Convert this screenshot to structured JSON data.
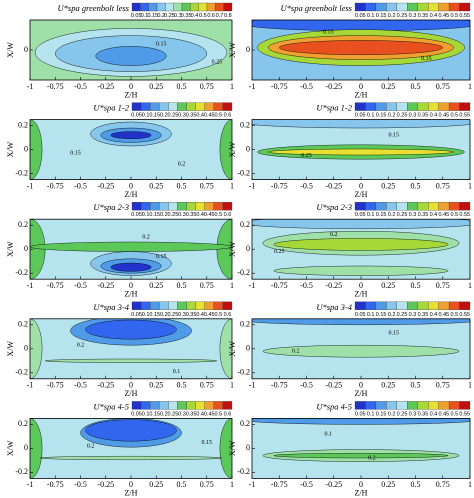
{
  "chart_data": [
    {
      "type": "contour",
      "title": "U*spa greenbolt less",
      "xlabel": "Z/H",
      "ylabel": "X/W",
      "xlim": [
        -1,
        1
      ],
      "ylim": [
        -0.25,
        0.25
      ],
      "xticks": [
        -1,
        -0.75,
        -0.5,
        -0.25,
        0,
        0.25,
        0.5,
        0.75,
        1
      ],
      "yticks": [
        0
      ],
      "colorbar_ticks": [
        0.05,
        0.1,
        0.15,
        0.2,
        0.25,
        0.3,
        0.35,
        0.4,
        0.5,
        0.6,
        0.7,
        0.8
      ],
      "colormap": [
        "#2233cc",
        "#3366ee",
        "#4f9be8",
        "#86c5ec",
        "#b5e3ee",
        "#9ee0a8",
        "#5cc85a",
        "#a6d83a",
        "#e8e030",
        "#f0a030",
        "#e85020",
        "#c01010"
      ],
      "contour_labels": [
        0.15,
        0.25
      ]
    },
    {
      "type": "contour",
      "title": "U*spa greenbolt less",
      "xlabel": "Z/H",
      "ylabel": "X/W",
      "xlim": [
        -1,
        1
      ],
      "ylim": [
        -0.25,
        0.25
      ],
      "xticks": [
        -1,
        -0.75,
        -0.5,
        -0.25,
        0,
        0.25,
        0.5,
        0.75,
        1
      ],
      "yticks": [
        0
      ],
      "colorbar_ticks": [
        0.05,
        0.1,
        0.15,
        0.2,
        0.25,
        0.3,
        0.35,
        0.4,
        0.45,
        0.5,
        0.55
      ],
      "colormap": [
        "#2233cc",
        "#3366ee",
        "#4f9be8",
        "#86c5ec",
        "#b5e3ee",
        "#9ee0a8",
        "#5cc85a",
        "#a6d83a",
        "#e8e030",
        "#f0a030",
        "#e85020",
        "#c01010"
      ],
      "contour_labels": [
        0.15,
        0.35
      ]
    },
    {
      "type": "contour",
      "title": "U*spa 1-2",
      "xlabel": "Z/H",
      "ylabel": "X/W",
      "xlim": [
        -1,
        1
      ],
      "ylim": [
        -0.25,
        0.25
      ],
      "xticks": [
        -1,
        -0.75,
        -0.5,
        -0.25,
        0,
        0.25,
        0.5,
        0.75,
        1
      ],
      "yticks": [
        -0.2,
        0,
        0.2
      ],
      "colorbar_ticks": [
        0.05,
        0.1,
        0.15,
        0.2,
        0.25,
        0.3,
        0.35,
        0.4,
        0.45,
        0.5,
        0.6
      ],
      "colormap": [
        "#2233cc",
        "#3366ee",
        "#4f9be8",
        "#86c5ec",
        "#b5e3ee",
        "#9ee0a8",
        "#5cc85a",
        "#a6d83a",
        "#e8e030",
        "#f0a030",
        "#e85020",
        "#c01010"
      ],
      "contour_labels": [
        0.15,
        0.2
      ]
    },
    {
      "type": "contour",
      "title": "U*spa 1-2",
      "xlabel": "Z/H",
      "ylabel": "X/W",
      "xlim": [
        -1,
        1
      ],
      "ylim": [
        -0.25,
        0.25
      ],
      "xticks": [
        -1,
        -0.75,
        -0.5,
        -0.25,
        0,
        0.25,
        0.5,
        0.75,
        1
      ],
      "yticks": [
        -0.2,
        0,
        0.2
      ],
      "colorbar_ticks": [
        0.05,
        0.1,
        0.15,
        0.2,
        0.25,
        0.3,
        0.35,
        0.4,
        0.45,
        0.5,
        0.55
      ],
      "colormap": [
        "#2233cc",
        "#3366ee",
        "#4f9be8",
        "#86c5ec",
        "#b5e3ee",
        "#9ee0a8",
        "#5cc85a",
        "#a6d83a",
        "#e8e030",
        "#f0a030",
        "#e85020",
        "#c01010"
      ],
      "contour_labels": [
        0.15,
        0.25
      ]
    },
    {
      "type": "contour",
      "title": "U*spa 2-3",
      "xlabel": "Z/H",
      "ylabel": "X/W",
      "xlim": [
        -1,
        1
      ],
      "ylim": [
        -0.25,
        0.25
      ],
      "xticks": [
        -1,
        -0.75,
        -0.5,
        -0.25,
        0,
        0.25,
        0.5,
        0.75,
        1
      ],
      "yticks": [
        -0.2,
        0,
        0.2
      ],
      "colorbar_ticks": [
        0.05,
        0.1,
        0.15,
        0.2,
        0.25,
        0.3,
        0.35,
        0.4,
        0.45,
        0.5,
        0.6
      ],
      "colormap": [
        "#2233cc",
        "#3366ee",
        "#4f9be8",
        "#86c5ec",
        "#b5e3ee",
        "#9ee0a8",
        "#5cc85a",
        "#a6d83a",
        "#e8e030",
        "#f0a030",
        "#e85020",
        "#c01010"
      ],
      "contour_labels": [
        0.2,
        0.15
      ]
    },
    {
      "type": "contour",
      "title": "U*spa 2-3",
      "xlabel": "Z/H",
      "ylabel": "X/W",
      "xlim": [
        -1,
        1
      ],
      "ylim": [
        -0.25,
        0.25
      ],
      "xticks": [
        -1,
        -0.75,
        -0.5,
        -0.25,
        0,
        0.25,
        0.5,
        0.75,
        1
      ],
      "yticks": [
        -0.2,
        0,
        0.2
      ],
      "colorbar_ticks": [
        0.05,
        0.1,
        0.15,
        0.2,
        0.25,
        0.3,
        0.35,
        0.4,
        0.45,
        0.5,
        0.55
      ],
      "colormap": [
        "#2233cc",
        "#3366ee",
        "#4f9be8",
        "#86c5ec",
        "#b5e3ee",
        "#9ee0a8",
        "#5cc85a",
        "#a6d83a",
        "#e8e030",
        "#f0a030",
        "#e85020",
        "#c01010"
      ],
      "contour_labels": [
        0.2,
        0.25
      ]
    },
    {
      "type": "contour",
      "title": "U*spa 3-4",
      "xlabel": "Z/H",
      "ylabel": "X/W",
      "xlim": [
        -1,
        1
      ],
      "ylim": [
        -0.25,
        0.25
      ],
      "xticks": [
        -1,
        -0.75,
        -0.5,
        -0.25,
        0,
        0.25,
        0.5,
        0.75,
        1
      ],
      "yticks": [
        -0.2,
        0,
        0.2
      ],
      "colorbar_ticks": [
        0.05,
        0.1,
        0.15,
        0.2,
        0.25,
        0.3,
        0.35,
        0.4,
        0.45,
        0.5,
        0.6
      ],
      "colormap": [
        "#2233cc",
        "#3366ee",
        "#4f9be8",
        "#86c5ec",
        "#b5e3ee",
        "#9ee0a8",
        "#5cc85a",
        "#a6d83a",
        "#e8e030",
        "#f0a030",
        "#e85020",
        "#c01010"
      ],
      "contour_labels": [
        0.2,
        0.1
      ]
    },
    {
      "type": "contour",
      "title": "U*spa 3-4",
      "xlabel": "Z/H",
      "ylabel": "X/W",
      "xlim": [
        -1,
        1
      ],
      "ylim": [
        -0.25,
        0.25
      ],
      "xticks": [
        -1,
        -0.75,
        -0.5,
        -0.25,
        0,
        0.25,
        0.5,
        0.75,
        1
      ],
      "yticks": [
        -0.2,
        0,
        0.2
      ],
      "colorbar_ticks": [
        0.05,
        0.1,
        0.15,
        0.2,
        0.25,
        0.3,
        0.35,
        0.4,
        0.45,
        0.5,
        0.55
      ],
      "colormap": [
        "#2233cc",
        "#3366ee",
        "#4f9be8",
        "#86c5ec",
        "#b5e3ee",
        "#9ee0a8",
        "#5cc85a",
        "#a6d83a",
        "#e8e030",
        "#f0a030",
        "#e85020",
        "#c01010"
      ],
      "contour_labels": [
        0.15,
        0.2
      ]
    },
    {
      "type": "contour",
      "title": "U*spa 4-5",
      "xlabel": "Z/H",
      "ylabel": "X/W",
      "xlim": [
        -1,
        1
      ],
      "ylim": [
        -0.25,
        0.25
      ],
      "xticks": [
        -1,
        -0.75,
        -0.5,
        -0.25,
        0,
        0.25,
        0.5,
        0.75,
        1
      ],
      "yticks": [
        -0.2,
        0,
        0.2
      ],
      "colorbar_ticks": [
        0.05,
        0.1,
        0.15,
        0.2,
        0.25,
        0.3,
        0.35,
        0.4,
        0.45,
        0.5,
        0.6
      ],
      "colormap": [
        "#2233cc",
        "#3366ee",
        "#4f9be8",
        "#86c5ec",
        "#b5e3ee",
        "#9ee0a8",
        "#5cc85a",
        "#a6d83a",
        "#e8e030",
        "#f0a030",
        "#e85020",
        "#c01010"
      ],
      "contour_labels": [
        0.2,
        0.15
      ]
    },
    {
      "type": "contour",
      "title": "U*spa 4-5",
      "xlabel": "Z/H",
      "ylabel": "X/W",
      "xlim": [
        -1,
        1
      ],
      "ylim": [
        -0.25,
        0.25
      ],
      "xticks": [
        -1,
        -0.75,
        -0.5,
        -0.25,
        0,
        0.25,
        0.5,
        0.75,
        1
      ],
      "yticks": [
        -0.2,
        0,
        0.2
      ],
      "colorbar_ticks": [
        0.05,
        0.1,
        0.15,
        0.2,
        0.25,
        0.3,
        0.35,
        0.4,
        0.45,
        0.5,
        0.55
      ],
      "colormap": [
        "#2233cc",
        "#3366ee",
        "#4f9be8",
        "#86c5ec",
        "#b5e3ee",
        "#9ee0a8",
        "#5cc85a",
        "#a6d83a",
        "#e8e030",
        "#f0a030",
        "#e85020",
        "#c01010"
      ],
      "contour_labels": [
        0.1,
        0.2
      ]
    }
  ]
}
